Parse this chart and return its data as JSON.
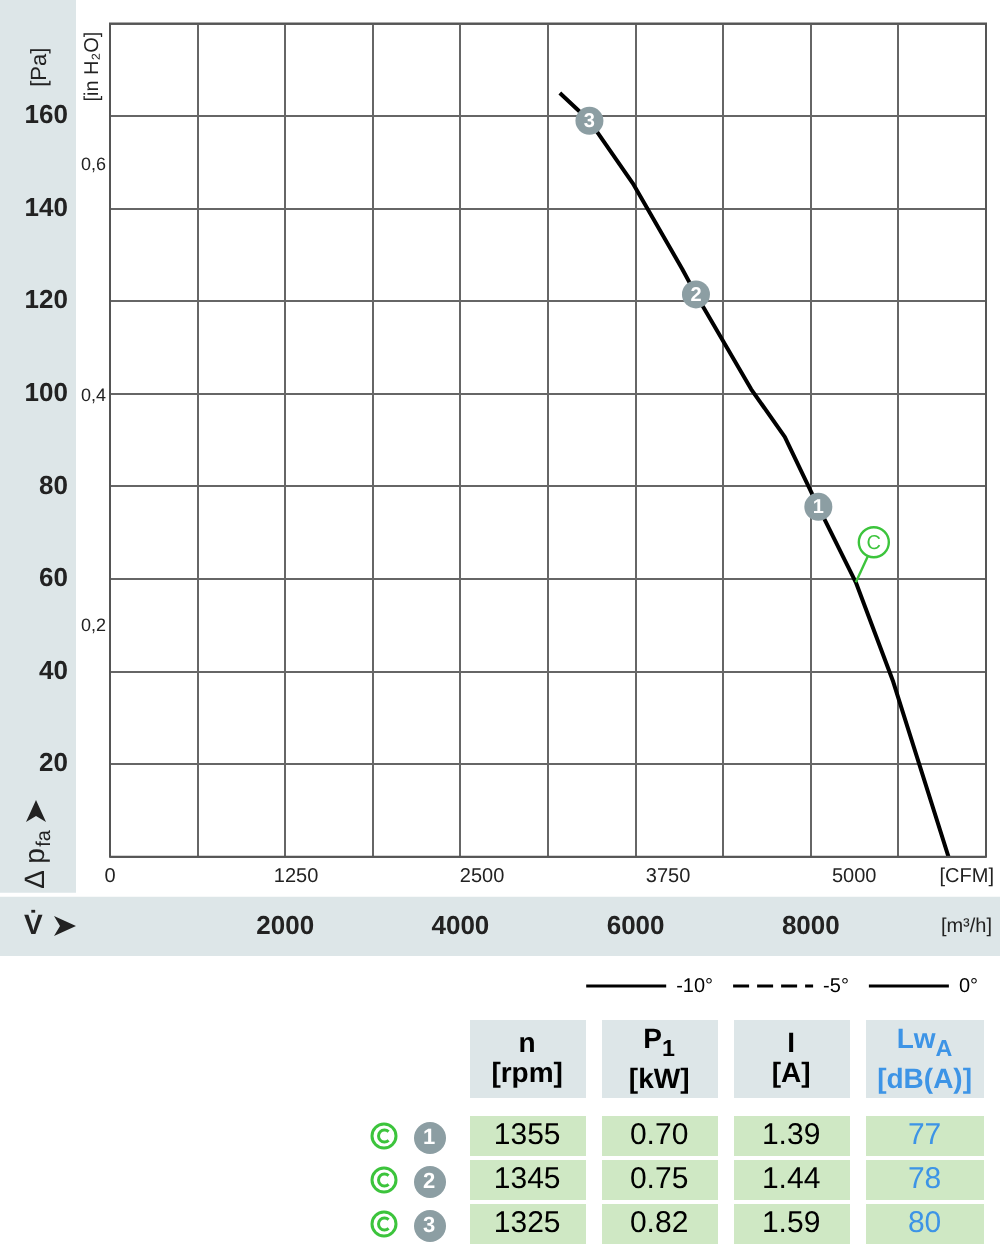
{
  "chart_data": [
    {
      "type": "line",
      "xlabel": "V̇",
      "ylabel": "Δ p$_{fa}$",
      "y2label": "[in H₂O]",
      "x2label": "[CFM]",
      "xlim": [
        0,
        10000
      ],
      "xticks": [
        {
          "value": 0,
          "label": null
        },
        {
          "value": 1000,
          "label": null
        },
        2000,
        {
          "value": 3000,
          "label": null
        },
        4000,
        {
          "value": 5000,
          "label": null
        },
        6000,
        {
          "value": 7000,
          "label": null
        },
        8000,
        {
          "value": 9000,
          "label": null
        },
        {
          "value": 10000,
          "label": null
        }
      ],
      "x2lim": [
        0,
        5886
      ],
      "x2ticks": [
        0,
        1250,
        2500,
        3750,
        5000
      ],
      "ylim": [
        0,
        180
      ],
      "yticks": [
        {
          "value": 0,
          "label": null
        },
        20,
        40,
        60,
        80,
        100,
        120,
        140,
        160,
        {
          "value": 180,
          "label": null
        }
      ],
      "y2lim": [
        0,
        0.723
      ],
      "y2ticks": [
        {
          "value": 0.2,
          "label": "0,2"
        },
        {
          "value": 0.4,
          "label": "0,4"
        },
        {
          "value": 0.6,
          "label": "0,6"
        }
      ],
      "grid": true,
      "legend": "bottom right",
      "marker": "none",
      "series": [
        {
          "name": "-10°",
          "color": "#000000",
          "line_style": "dashdot"
        },
        {
          "name": "-5°",
          "color": "#000000",
          "line_style": "dashed"
        },
        {
          "name": "0°",
          "color": "#000000",
          "line_style": "solid",
          "x": [
            5135,
            5473,
            5968,
            6532,
            6689,
            7320,
            7703,
            8086,
            8514,
            8941,
            9572
          ],
          "values": [
            165,
            159,
            145.5,
            127,
            121.5,
            101,
            90.7,
            75.6,
            59.3,
            37.8,
            0
          ]
        }
      ],
      "annotations": [
        {
          "text": "3",
          "x": 5473,
          "y": 159
        },
        {
          "text": "2",
          "x": 6689,
          "y": 121.5
        },
        {
          "text": "1",
          "x": 8086,
          "y": 75.6
        },
        {
          "text": "C",
          "x": 8514,
          "y": 59.3
        },
        "[Pa]",
        "[m³/h]"
      ]
    },
    {
      "type": "other",
      "categories": [
        "n\n[rpm]",
        "P$_{1}$\n[kW]",
        "I\n[A]",
        "Lw$_{A}$\n[dB(A)]"
      ],
      "y_categories": [
        "1",
        "2",
        "3"
      ],
      "cell_labels": [
        [
          "1355",
          "0.70",
          "1.39",
          "77"
        ],
        [
          "1345",
          "0.75",
          "1.44",
          "78"
        ],
        [
          "1325",
          "0.82",
          "1.59",
          "80"
        ]
      ]
    }
  ]
}
